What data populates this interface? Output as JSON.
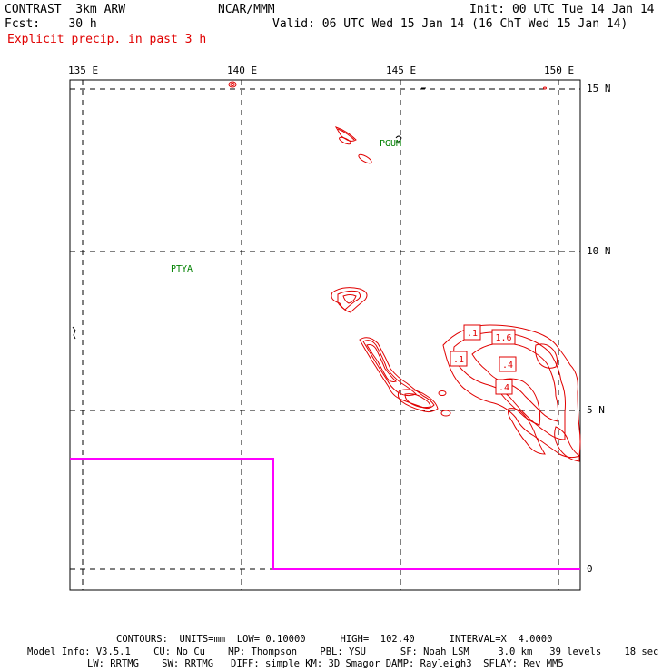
{
  "header": {
    "model": "CONTRAST  3km ARW",
    "org": "NCAR/MMM",
    "init": "Init: 00 UTC Tue 14 Jan 14",
    "fcst": "Fcst:    30 h",
    "valid": "Valid: 06 UTC Wed 15 Jan 14 (16 ChT Wed 15 Jan 14)",
    "field": "Explicit precip. in past 3 h"
  },
  "axes": {
    "lon_labels": [
      "135 E",
      "140 E",
      "145 E",
      "150 E"
    ],
    "lat_labels": [
      "15 N",
      "10 N",
      "5 N",
      "0"
    ]
  },
  "stations": [
    "PGUM",
    "PTYA"
  ],
  "contour_labels": [
    ".1",
    "1.6",
    ".1",
    ".4",
    ".4"
  ],
  "footer": {
    "contours": "CONTOURS:  UNITS=mm  LOW= 0.10000      HIGH=  102.40      INTERVAL=X  4.0000",
    "model_info_1": "Model Info: V3.5.1    CU: No Cu    MP: Thompson    PBL: YSU      SF: Noah LSM     3.0 km   39 levels    18 sec",
    "model_info_2": "LW: RRTMG    SW: RRTMG   DIFF: simple KM: 3D Smagor DAMP: Rayleigh3  SFLAY: Rev MM5"
  },
  "colors": {
    "precip": "#e00000",
    "boundary": "#ff00ff",
    "station": "#008000",
    "grid": "#000000"
  }
}
